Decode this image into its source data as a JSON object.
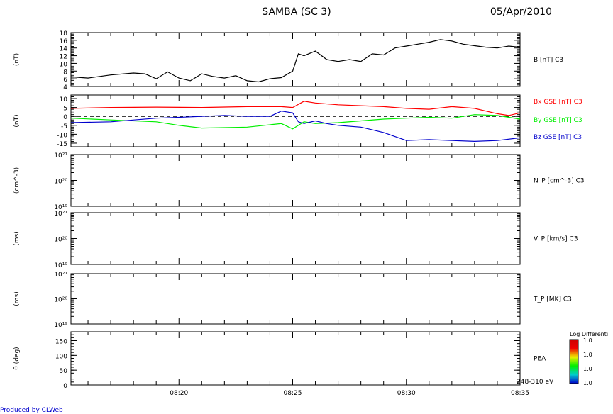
{
  "header": {
    "title": "SAMBA (SC 3)",
    "date": "05/Apr/2010"
  },
  "footer": {
    "credit": "Produced by CLWeb",
    "energy_range": "248-310 eV"
  },
  "colorbar": {
    "title": "Log Differenti",
    "ticks": [
      "1.0",
      "1.0",
      "1.0",
      "1.0"
    ],
    "colors": [
      "#0000cc",
      "#00cccc",
      "#00ee00",
      "#eeee00",
      "#ee0000",
      "#cc0000"
    ]
  },
  "chart_data": [
    {
      "type": "line",
      "panel": "B",
      "units_label": "(nT)",
      "right_label": "B [nT] C3",
      "ylim": [
        4,
        18
      ],
      "yticks": [
        4,
        6,
        8,
        10,
        12,
        14,
        16,
        18
      ],
      "xlim": [
        "08:15:15",
        "08:35:00"
      ],
      "xticks": [
        "08:20",
        "08:25",
        "08:30",
        "08:35"
      ],
      "series": [
        {
          "color": "#000000",
          "x": [
            "08:15:15",
            "08:16:00",
            "08:17:00",
            "08:18:00",
            "08:18:30",
            "08:19:00",
            "08:19:30",
            "08:20:00",
            "08:20:30",
            "08:21:00",
            "08:21:30",
            "08:22:00",
            "08:22:30",
            "08:23:00",
            "08:23:30",
            "08:24:00",
            "08:24:30",
            "08:25:00",
            "08:25:15",
            "08:25:30",
            "08:26:00",
            "08:26:30",
            "08:27:00",
            "08:27:30",
            "08:28:00",
            "08:28:30",
            "08:29:00",
            "08:29:30",
            "08:30:00",
            "08:30:30",
            "08:31:00",
            "08:31:30",
            "08:32:00",
            "08:32:30",
            "08:33:00",
            "08:33:30",
            "08:34:00",
            "08:34:30",
            "08:35:00"
          ],
          "values": [
            6.5,
            6.2,
            7.0,
            7.5,
            7.3,
            6.0,
            7.8,
            6.2,
            5.5,
            7.3,
            6.6,
            6.2,
            6.8,
            5.5,
            5.2,
            6.0,
            6.3,
            8.0,
            12.5,
            12.0,
            13.2,
            11.0,
            10.5,
            11.0,
            10.5,
            12.5,
            12.2,
            14.0,
            14.5,
            15.0,
            15.5,
            16.2,
            15.8,
            15.0,
            14.6,
            14.2,
            14.0,
            14.5,
            14.2
          ]
        }
      ]
    },
    {
      "type": "line",
      "panel": "B-components",
      "units_label": "(nT)",
      "right_labels": [
        "Bx GSE [nT] C3",
        "By GSE [nT] C3",
        "Bz GSE [nT] C3"
      ],
      "ylim": [
        -17,
        12
      ],
      "yticks": [
        10,
        5,
        0,
        -5,
        -10,
        -15
      ],
      "zero_line": true,
      "xlim": [
        "08:15:15",
        "08:35:00"
      ],
      "xticks": [
        "08:20",
        "08:25",
        "08:30",
        "08:35"
      ],
      "series": [
        {
          "color": "#ff0000",
          "x": [
            "08:15:15",
            "08:17:00",
            "08:19:00",
            "08:21:00",
            "08:23:00",
            "08:24:30",
            "08:25:00",
            "08:25:30",
            "08:26:00",
            "08:27:00",
            "08:28:00",
            "08:29:00",
            "08:30:00",
            "08:31:00",
            "08:32:00",
            "08:33:00",
            "08:34:00",
            "08:34:30",
            "08:35:00"
          ],
          "values": [
            4.5,
            5.0,
            5.2,
            5.0,
            5.5,
            5.5,
            5.0,
            8.5,
            7.5,
            6.5,
            6.0,
            5.5,
            4.5,
            4.0,
            5.5,
            4.5,
            1.5,
            0.5,
            2.0
          ]
        },
        {
          "color": "#00ee00",
          "x": [
            "08:15:15",
            "08:17:00",
            "08:19:00",
            "08:20:00",
            "08:21:00",
            "08:23:00",
            "08:24:30",
            "08:25:00",
            "08:25:30",
            "08:26:00",
            "08:27:00",
            "08:28:00",
            "08:29:00",
            "08:30:00",
            "08:31:00",
            "08:32:00",
            "08:33:00",
            "08:34:00",
            "08:35:00"
          ],
          "values": [
            -1.0,
            -2.0,
            -3.0,
            -5.0,
            -6.5,
            -6.0,
            -4.0,
            -7.0,
            -3.0,
            -4.0,
            -3.5,
            -2.5,
            -1.5,
            -1.0,
            -0.5,
            -1.0,
            1.0,
            0.5,
            -1.5
          ]
        },
        {
          "color": "#0000cc",
          "x": [
            "08:15:15",
            "08:17:00",
            "08:19:00",
            "08:20:00",
            "08:21:00",
            "08:22:00",
            "08:23:00",
            "08:24:00",
            "08:24:30",
            "08:25:00",
            "08:25:15",
            "08:25:30",
            "08:26:00",
            "08:26:30",
            "08:27:00",
            "08:28:00",
            "08:28:30",
            "08:29:00",
            "08:30:00",
            "08:31:00",
            "08:32:00",
            "08:33:00",
            "08:34:00",
            "08:35:00"
          ],
          "values": [
            -3.5,
            -3.0,
            -1.0,
            -0.5,
            0.0,
            0.5,
            0.0,
            0.0,
            3.0,
            2.0,
            -3.0,
            -4.0,
            -2.5,
            -4.0,
            -5.0,
            -6.0,
            -7.5,
            -9.0,
            -13.5,
            -13.0,
            -13.5,
            -14.0,
            -13.5,
            -12.0
          ]
        }
      ]
    },
    {
      "type": "line",
      "panel": "N_P",
      "units_label": "(cm^-3)",
      "right_label": "N_P [cm^-3] C3",
      "scale": "log",
      "ylim": [
        1e+19,
        1e+21
      ],
      "ytick_labels": [
        "10²¹",
        "10²⁰",
        "10¹⁹"
      ],
      "series": []
    },
    {
      "type": "line",
      "panel": "V_P",
      "units_label": "(ms)",
      "right_label": "V_P [km/s] C3",
      "scale": "log",
      "ylim": [
        1e+19,
        1e+21
      ],
      "ytick_labels": [
        "10²¹",
        "10²⁰",
        "10¹⁹"
      ],
      "series": []
    },
    {
      "type": "line",
      "panel": "T_P",
      "units_label": "(ms)",
      "right_label": "T_P [MK] C3",
      "scale": "log",
      "ylim": [
        1e+19,
        1e+21
      ],
      "ytick_labels": [
        "10²¹",
        "10²⁰",
        "10¹⁹"
      ],
      "series": []
    },
    {
      "type": "heatmap",
      "panel": "PEA",
      "units_label": "θ (deg)",
      "right_label": "PEA",
      "ylim": [
        0,
        180
      ],
      "yticks": [
        0,
        50,
        100,
        150
      ],
      "xlim": [
        "08:15:15",
        "08:35:00"
      ],
      "xticks": [
        "08:20",
        "08:25",
        "08:30",
        "08:35"
      ],
      "values": []
    }
  ]
}
